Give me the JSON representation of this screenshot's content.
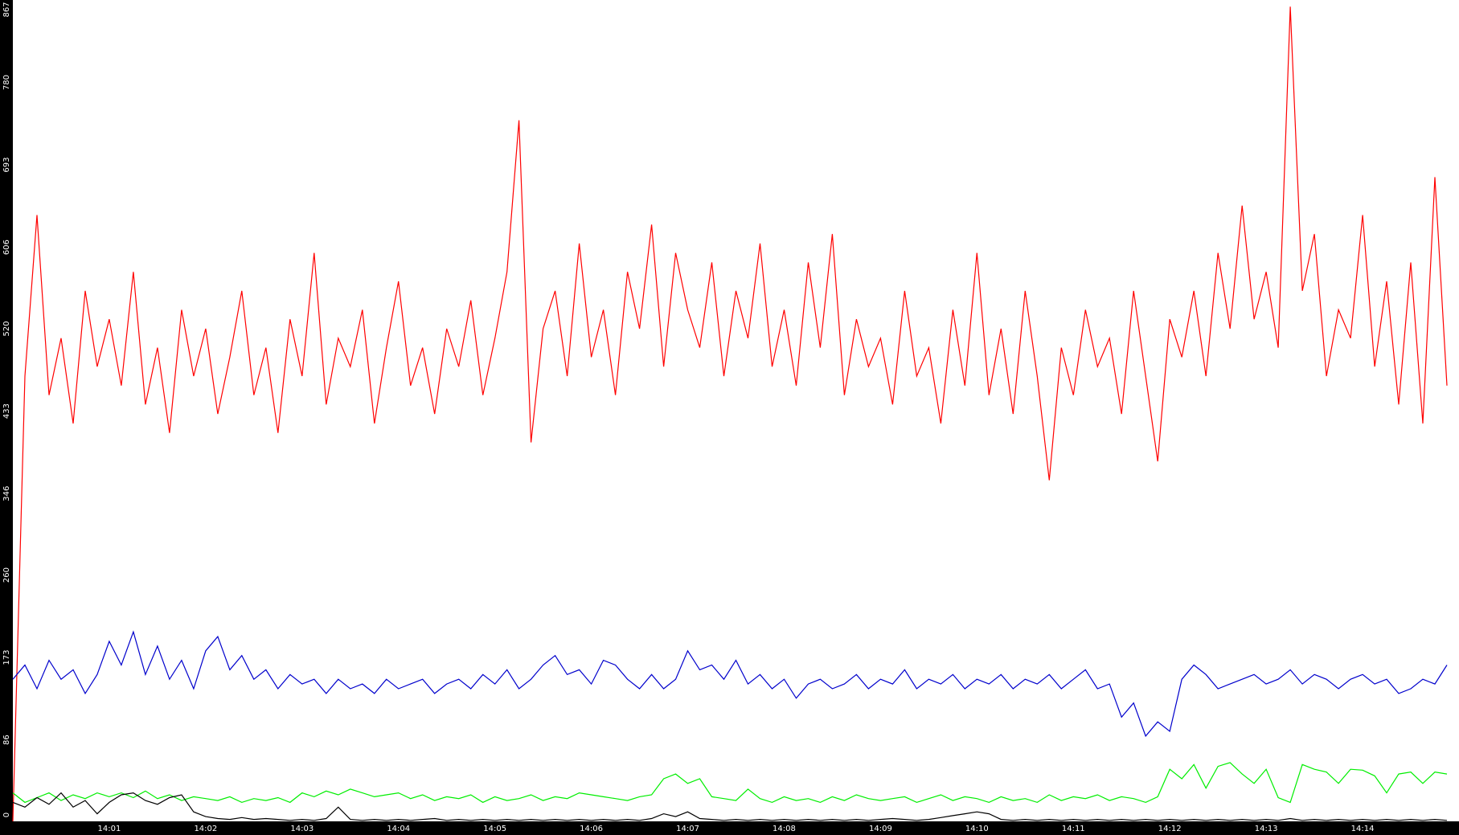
{
  "chart_data": {
    "type": "line",
    "categories": [
      null,
      null,
      null,
      null,
      null,
      null,
      null,
      null,
      "14:01",
      null,
      null,
      null,
      null,
      null,
      null,
      null,
      "14:02",
      null,
      null,
      null,
      null,
      null,
      null,
      null,
      "14:03",
      null,
      null,
      null,
      null,
      null,
      null,
      null,
      "14:04",
      null,
      null,
      null,
      null,
      null,
      null,
      null,
      "14:05",
      null,
      null,
      null,
      null,
      null,
      null,
      null,
      "14:06",
      null,
      null,
      null,
      null,
      null,
      null,
      null,
      "14:07",
      null,
      null,
      null,
      null,
      null,
      null,
      null,
      "14:08",
      null,
      null,
      null,
      null,
      null,
      null,
      null,
      "14:09",
      null,
      null,
      null,
      null,
      null,
      null,
      null,
      "14:10",
      null,
      null,
      null,
      null,
      null,
      null,
      null,
      "14:11",
      null,
      null,
      null,
      null,
      null,
      null,
      null,
      "14:12",
      null,
      null,
      null,
      null,
      null,
      null,
      null,
      "14:13",
      null,
      null,
      null,
      null,
      null,
      null,
      null,
      "14:14",
      null,
      null,
      null,
      null,
      null,
      null,
      null
    ],
    "series": [
      {
        "color": "#ff0000",
        "values": [
          0,
          470,
          640,
          450,
          510,
          420,
          560,
          480,
          530,
          460,
          580,
          440,
          500,
          410,
          540,
          470,
          520,
          430,
          490,
          560,
          450,
          500,
          410,
          530,
          470,
          600,
          440,
          510,
          480,
          540,
          420,
          500,
          570,
          460,
          500,
          430,
          520,
          480,
          550,
          450,
          510,
          580,
          740,
          400,
          520,
          560,
          470,
          610,
          490,
          540,
          450,
          580,
          520,
          630,
          480,
          600,
          540,
          500,
          590,
          470,
          560,
          510,
          610,
          480,
          540,
          460,
          590,
          500,
          620,
          450,
          530,
          480,
          510,
          440,
          560,
          470,
          500,
          420,
          540,
          460,
          600,
          450,
          520,
          430,
          560,
          470,
          360,
          500,
          450,
          540,
          480,
          510,
          430,
          560,
          470,
          380,
          530,
          490,
          560,
          470,
          600,
          520,
          650,
          530,
          580,
          500,
          860,
          560,
          620,
          470,
          540,
          510,
          640,
          480,
          570,
          440,
          590,
          420,
          680,
          460
        ]
      },
      {
        "color": "#0000cc",
        "values": [
          150,
          165,
          140,
          170,
          150,
          160,
          135,
          155,
          190,
          165,
          200,
          155,
          185,
          150,
          170,
          140,
          180,
          195,
          160,
          175,
          150,
          160,
          140,
          155,
          145,
          150,
          135,
          150,
          140,
          145,
          135,
          150,
          140,
          145,
          150,
          135,
          145,
          150,
          140,
          155,
          145,
          160,
          140,
          150,
          165,
          175,
          155,
          160,
          145,
          170,
          165,
          150,
          140,
          155,
          140,
          150,
          180,
          160,
          165,
          150,
          170,
          145,
          155,
          140,
          150,
          130,
          145,
          150,
          140,
          145,
          155,
          140,
          150,
          145,
          160,
          140,
          150,
          145,
          155,
          140,
          150,
          145,
          155,
          140,
          150,
          145,
          155,
          140,
          150,
          160,
          140,
          145,
          110,
          125,
          90,
          105,
          95,
          150,
          165,
          155,
          140,
          145,
          150,
          155,
          145,
          150,
          160,
          145,
          155,
          150,
          140,
          150,
          155,
          145,
          150,
          135,
          140,
          150,
          145,
          165
        ]
      },
      {
        "color": "#00ee00",
        "values": [
          30,
          20,
          25,
          30,
          22,
          28,
          24,
          30,
          26,
          30,
          25,
          32,
          24,
          28,
          22,
          26,
          24,
          22,
          26,
          20,
          24,
          22,
          25,
          20,
          30,
          26,
          32,
          28,
          34,
          30,
          26,
          28,
          30,
          24,
          28,
          22,
          26,
          24,
          28,
          20,
          26,
          22,
          24,
          28,
          22,
          26,
          24,
          30,
          28,
          26,
          24,
          22,
          26,
          28,
          45,
          50,
          40,
          45,
          26,
          24,
          22,
          34,
          24,
          20,
          26,
          22,
          24,
          20,
          26,
          22,
          28,
          24,
          22,
          24,
          26,
          20,
          24,
          28,
          22,
          26,
          24,
          20,
          26,
          22,
          24,
          20,
          28,
          22,
          26,
          24,
          28,
          22,
          26,
          24,
          20,
          26,
          55,
          45,
          60,
          35,
          58,
          62,
          50,
          40,
          55,
          25,
          20,
          60,
          55,
          52,
          40,
          55,
          54,
          48,
          30,
          50,
          52,
          40,
          52,
          50
        ]
      },
      {
        "color": "#000000",
        "values": [
          20,
          15,
          25,
          18,
          30,
          15,
          22,
          8,
          20,
          28,
          30,
          22,
          18,
          25,
          28,
          10,
          5,
          3,
          2,
          4,
          2,
          3,
          2,
          1,
          2,
          1,
          3,
          15,
          2,
          1,
          2,
          1,
          2,
          1,
          2,
          3,
          1,
          2,
          1,
          2,
          1,
          2,
          1,
          2,
          1,
          2,
          1,
          2,
          1,
          2,
          1,
          2,
          1,
          3,
          8,
          5,
          10,
          3,
          2,
          1,
          2,
          1,
          2,
          1,
          2,
          1,
          2,
          1,
          2,
          1,
          2,
          1,
          2,
          3,
          2,
          1,
          2,
          4,
          6,
          8,
          10,
          8,
          2,
          1,
          2,
          1,
          2,
          1,
          2,
          1,
          2,
          1,
          2,
          1,
          2,
          1,
          2,
          1,
          2,
          1,
          2,
          1,
          2,
          1,
          2,
          1,
          3,
          1,
          2,
          1,
          2,
          1,
          2,
          1,
          2,
          1,
          2,
          1,
          2,
          1
        ]
      }
    ],
    "ylim": [
      0,
      867
    ],
    "yticks": [
      0,
      86,
      173,
      260,
      346,
      433,
      520,
      606,
      693,
      780,
      867
    ],
    "grid": false
  }
}
